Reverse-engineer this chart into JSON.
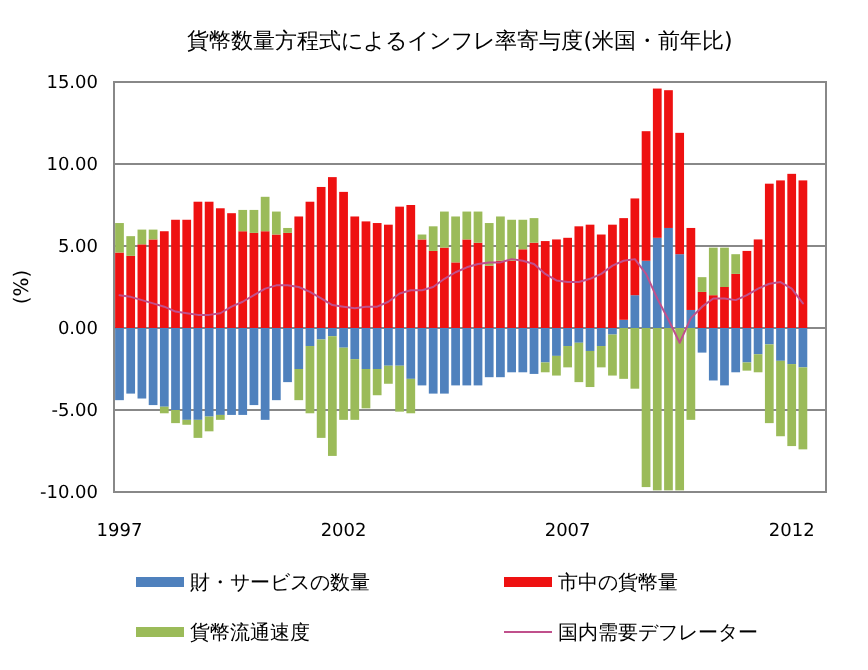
{
  "chart_data": {
    "type": "bar",
    "stacked": true,
    "title": "貨幣数量方程式によるインフレ率寄与度(米国・前年比)",
    "ylabel": "(%)",
    "categories": [
      "1997",
      null,
      null,
      null,
      null,
      null,
      null,
      null,
      null,
      null,
      null,
      null,
      null,
      null,
      null,
      null,
      null,
      null,
      null,
      null,
      "2002",
      null,
      null,
      null,
      null,
      null,
      null,
      null,
      null,
      null,
      null,
      null,
      null,
      null,
      null,
      null,
      null,
      null,
      null,
      null,
      "2007",
      null,
      null,
      null,
      null,
      null,
      null,
      null,
      null,
      null,
      null,
      null,
      null,
      null,
      null,
      null,
      null,
      null,
      null,
      null,
      "2012",
      null
    ],
    "series": [
      {
        "name": "財・サービスの数量",
        "color": "#4f81bd",
        "values": [
          -4.4,
          -4.0,
          -4.3,
          -4.7,
          -4.8,
          -5.0,
          -5.6,
          -5.6,
          -5.4,
          -5.3,
          -5.3,
          -5.3,
          -4.7,
          -5.6,
          -4.4,
          -3.3,
          -2.5,
          -1.1,
          -0.7,
          -0.5,
          -1.2,
          -1.9,
          -2.5,
          -2.5,
          -2.3,
          -2.3,
          -3.1,
          -3.5,
          -4.0,
          -4.0,
          -3.5,
          -3.5,
          -3.5,
          -3.0,
          -3.0,
          -2.7,
          -2.7,
          -2.8,
          -2.1,
          -1.7,
          -1.1,
          -0.9,
          -1.4,
          -1.1,
          -0.4,
          0.5,
          2.0,
          4.1,
          5.5,
          6.1,
          4.5,
          1.1,
          -1.5,
          -3.2,
          -3.5,
          -2.7,
          -2.1,
          -1.6,
          -1.0,
          -2.0,
          -2.2,
          -2.4
        ]
      },
      {
        "name": "市中の貨幣量",
        "color": "#ee1111",
        "values": [
          4.6,
          4.4,
          5.1,
          5.4,
          5.9,
          6.6,
          6.6,
          7.7,
          7.7,
          7.3,
          7.0,
          5.9,
          5.8,
          5.9,
          5.7,
          5.8,
          6.8,
          7.7,
          8.6,
          9.2,
          8.3,
          6.8,
          6.5,
          6.4,
          6.3,
          7.4,
          7.5,
          5.4,
          4.7,
          4.9,
          4.0,
          5.4,
          5.2,
          3.8,
          4.1,
          4.1,
          4.8,
          5.2,
          5.3,
          5.4,
          5.5,
          6.2,
          6.3,
          5.7,
          6.3,
          6.2,
          5.9,
          7.9,
          9.1,
          8.4,
          7.4,
          5.0,
          2.2,
          2.0,
          2.5,
          3.3,
          4.7,
          5.4,
          8.8,
          9.0,
          9.4,
          9.0
        ]
      },
      {
        "name": "貨幣流通速度",
        "color": "#9bbb59",
        "values": [
          1.8,
          1.2,
          0.9,
          0.6,
          -0.4,
          -0.8,
          -0.3,
          -1.1,
          -0.9,
          -0.3,
          0,
          1.3,
          1.4,
          2.1,
          1.4,
          0.3,
          -1.9,
          -4.1,
          -6.0,
          -7.3,
          -4.4,
          -3.7,
          -2.4,
          -1.6,
          -1.1,
          -2.8,
          -2.1,
          0.3,
          1.5,
          2.2,
          2.8,
          1.7,
          1.9,
          2.6,
          2.7,
          2.5,
          1.8,
          1.5,
          -0.6,
          -1.2,
          -1.3,
          -2.4,
          -2.2,
          -1.3,
          -2.5,
          -3.1,
          -3.7,
          -9.7,
          -9.9,
          -9.9,
          -9.9,
          -5.6,
          0.9,
          2.9,
          2.4,
          1.2,
          -0.5,
          -1.1,
          -4.8,
          -4.6,
          -5.0,
          -5.0
        ]
      },
      {
        "name": "国内需要デフレーター",
        "type": "line",
        "color": "#c0508c",
        "values": [
          2.0,
          1.9,
          1.7,
          1.5,
          1.3,
          1.0,
          0.9,
          0.8,
          0.8,
          0.9,
          1.3,
          1.6,
          2.0,
          2.4,
          2.6,
          2.6,
          2.5,
          2.2,
          1.8,
          1.4,
          1.3,
          1.2,
          1.3,
          1.3,
          1.6,
          2.1,
          2.3,
          2.3,
          2.5,
          3.0,
          3.4,
          3.7,
          3.9,
          4.0,
          4.0,
          4.2,
          4.1,
          3.9,
          3.3,
          2.9,
          2.8,
          2.8,
          3.0,
          3.3,
          3.8,
          4.1,
          4.2,
          3.3,
          1.8,
          0.5,
          -0.9,
          0.6,
          1.3,
          1.8,
          1.8,
          1.7,
          2.0,
          2.4,
          2.7,
          2.8,
          2.4,
          1.5
        ]
      }
    ],
    "ylim": [
      -10,
      15
    ],
    "yticks": [
      {
        "value": -10,
        "label": "-10.00"
      },
      {
        "value": -5,
        "label": "-5.00"
      },
      {
        "value": 0,
        "label": "0.00"
      },
      {
        "value": 5,
        "label": "5.00"
      },
      {
        "value": 10,
        "label": "10.00"
      },
      {
        "value": 15,
        "label": "15.00"
      }
    ],
    "grid": "y",
    "legend": "bottom",
    "marker": "none",
    "line_style": "solid"
  }
}
